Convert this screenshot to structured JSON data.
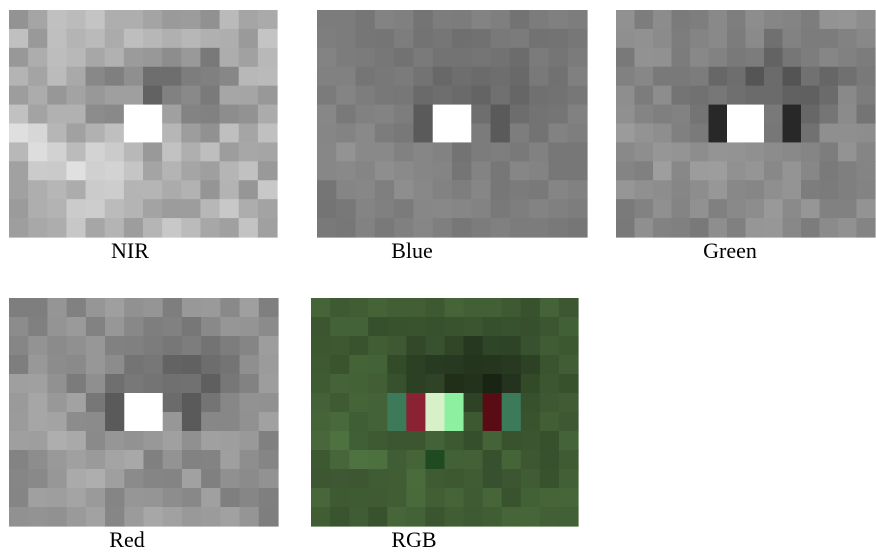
{
  "panels": [
    {
      "caption": "NIR"
    },
    {
      "caption": "Blue"
    },
    {
      "caption": "Green"
    },
    {
      "caption": "Red"
    },
    {
      "caption": "RGB"
    }
  ]
}
